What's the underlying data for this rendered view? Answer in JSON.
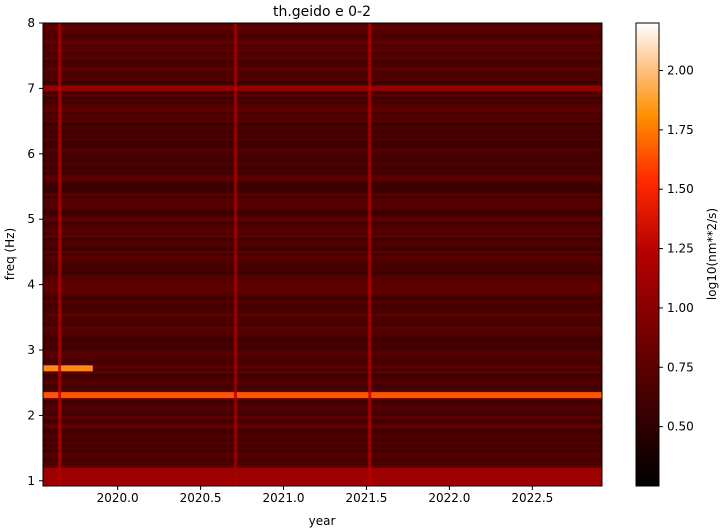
{
  "chart_data": {
    "type": "heatmap",
    "title": "th.geido e 0-2",
    "xlabel": "year",
    "ylabel": "freq (Hz)",
    "colorbar_label": "log10(nm**2/s)",
    "colormap": "gist_heat",
    "xlim": [
      2019.55,
      2022.92
    ],
    "ylim": [
      0.92,
      8.0
    ],
    "x_ticks": [
      2020.0,
      2020.5,
      2021.0,
      2021.5,
      2022.0,
      2022.5
    ],
    "x_tick_labels": [
      "2020.0",
      "2020.5",
      "2021.0",
      "2021.5",
      "2022.0",
      "2022.5"
    ],
    "y_ticks": [
      1,
      2,
      3,
      4,
      5,
      6,
      7,
      8
    ],
    "y_tick_labels": [
      "1",
      "2",
      "3",
      "4",
      "5",
      "6",
      "7",
      "8"
    ],
    "clim": [
      0.25,
      2.2
    ],
    "colorbar_ticks": [
      0.5,
      0.75,
      1.0,
      1.25,
      1.5,
      1.75,
      2.0
    ],
    "colorbar_tick_labels": [
      "0.50",
      "0.75",
      "1.00",
      "1.25",
      "1.50",
      "1.75",
      "2.00"
    ],
    "features": [
      {
        "kind": "horizontal-band",
        "freq": 2.31,
        "level": 1.55,
        "x_range": [
          2019.55,
          2022.92
        ]
      },
      {
        "kind": "horizontal-band",
        "freq": 2.72,
        "level": 1.75,
        "x_range": [
          2019.55,
          2019.85
        ]
      },
      {
        "kind": "horizontal-band",
        "freq": 7.0,
        "level": 1.0,
        "x_range": [
          2019.55,
          2022.92
        ]
      },
      {
        "kind": "low-freq-band",
        "freq_range": [
          0.92,
          1.2
        ],
        "level": 1.05
      },
      {
        "kind": "vertical-line",
        "year": 2019.65,
        "level": 1.15
      },
      {
        "kind": "vertical-line",
        "year": 2020.71,
        "level": 1.1
      },
      {
        "kind": "vertical-line",
        "year": 2021.52,
        "level": 1.2
      }
    ]
  }
}
